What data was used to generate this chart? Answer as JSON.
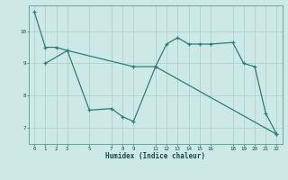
{
  "title": "",
  "xlabel": "Humidex (Indice chaleur)",
  "background_color": "#cce9e5",
  "grid_color": "#aed4cf",
  "line_color": "#2e7d78",
  "series1_x": [
    0,
    1,
    2,
    3,
    5,
    7,
    8,
    9,
    11,
    12,
    13,
    14,
    15,
    16,
    18,
    19,
    20,
    21,
    22
  ],
  "series1_y": [
    10.6,
    9.5,
    9.5,
    9.4,
    7.55,
    7.6,
    7.35,
    7.2,
    8.9,
    9.6,
    9.8,
    9.6,
    9.6,
    9.6,
    9.65,
    9.0,
    8.9,
    7.45,
    6.8
  ],
  "series2_x": [
    1,
    3,
    9,
    11,
    22
  ],
  "series2_y": [
    9.0,
    9.4,
    8.9,
    8.9,
    6.8
  ],
  "ylim": [
    6.5,
    10.8
  ],
  "xlim": [
    -0.5,
    22.5
  ],
  "yticks": [
    7,
    8,
    9,
    10
  ],
  "xticks": [
    0,
    1,
    2,
    3,
    5,
    7,
    8,
    9,
    11,
    12,
    13,
    14,
    15,
    16,
    18,
    19,
    20,
    21,
    22
  ]
}
